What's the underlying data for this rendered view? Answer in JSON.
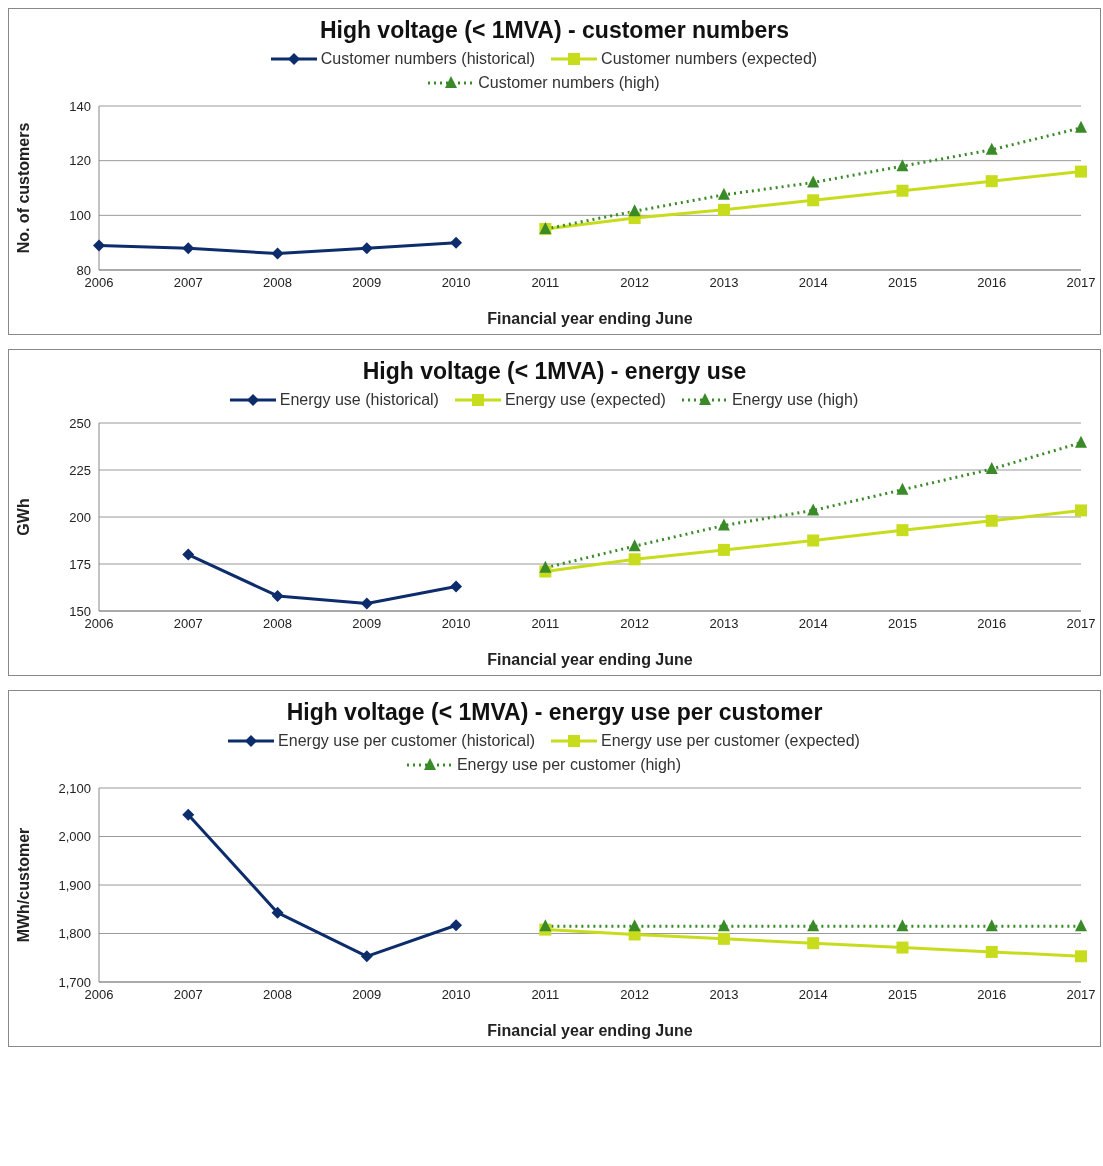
{
  "chart_data": [
    {
      "type": "line",
      "title": "High voltage (< 1MVA) - customer numbers",
      "xlabel": "Financial year ending June",
      "ylabel": "No. of customers",
      "categories": [
        "2006",
        "2007",
        "2008",
        "2009",
        "2010",
        "2011",
        "2012",
        "2013",
        "2014",
        "2015",
        "2016",
        "2017"
      ],
      "ylim": [
        80,
        140
      ],
      "yticks": [
        80,
        100,
        120,
        140
      ],
      "grid": "y",
      "legend": "top",
      "series": [
        {
          "name": "Customer numbers (historical)",
          "color": "#0d2c6c",
          "marker": "diamond",
          "line_style": "solid",
          "values": [
            89,
            88,
            86,
            88,
            90,
            null,
            null,
            null,
            null,
            null,
            null,
            null
          ]
        },
        {
          "name": "Customer numbers (expected)",
          "color": "#c8dc1e",
          "marker": "square",
          "line_style": "solid",
          "values": [
            null,
            null,
            null,
            null,
            null,
            95,
            99,
            102,
            105.5,
            109,
            112.5,
            116
          ]
        },
        {
          "name": "Customer numbers (high)",
          "color": "#3a8a2a",
          "marker": "triangle",
          "line_style": "dotted",
          "values": [
            null,
            null,
            null,
            null,
            null,
            95,
            101.5,
            107.5,
            112,
            118,
            124,
            132
          ]
        }
      ]
    },
    {
      "type": "line",
      "title": "High voltage (< 1MVA) - energy use",
      "xlabel": "Financial year ending June",
      "ylabel": "GWh",
      "categories": [
        "2006",
        "2007",
        "2008",
        "2009",
        "2010",
        "2011",
        "2012",
        "2013",
        "2014",
        "2015",
        "2016",
        "2017"
      ],
      "ylim": [
        150,
        250
      ],
      "yticks": [
        150,
        175,
        200,
        225,
        250
      ],
      "grid": "y",
      "legend": "top",
      "series": [
        {
          "name": "Energy use (historical)",
          "color": "#0d2c6c",
          "marker": "diamond",
          "line_style": "solid",
          "values": [
            null,
            180,
            158,
            154,
            163,
            null,
            null,
            null,
            null,
            null,
            null,
            null
          ]
        },
        {
          "name": "Energy use (expected)",
          "color": "#c8dc1e",
          "marker": "square",
          "line_style": "solid",
          "values": [
            null,
            null,
            null,
            null,
            null,
            171,
            177.5,
            182.5,
            187.5,
            193,
            198,
            203.5
          ]
        },
        {
          "name": "Energy use (high)",
          "color": "#3a8a2a",
          "marker": "triangle",
          "line_style": "dotted",
          "values": [
            null,
            null,
            null,
            null,
            null,
            173,
            184.5,
            195.5,
            203.5,
            214.5,
            225.5,
            239.5
          ]
        }
      ]
    },
    {
      "type": "line",
      "title": "High voltage (< 1MVA) - energy use per customer",
      "xlabel": "Financial year ending June",
      "ylabel": "MWh/customer",
      "categories": [
        "2006",
        "2007",
        "2008",
        "2009",
        "2010",
        "2011",
        "2012",
        "2013",
        "2014",
        "2015",
        "2016",
        "2017"
      ],
      "ylim": [
        1700,
        2100
      ],
      "yticks": [
        {
          "value": 1700,
          "label": "1,700"
        },
        {
          "value": 1800,
          "label": "1,800"
        },
        {
          "value": 1900,
          "label": "1,900"
        },
        {
          "value": 2000,
          "label": "2,000"
        },
        {
          "value": 2100,
          "label": "2,100"
        }
      ],
      "grid": "y",
      "legend": "top",
      "series": [
        {
          "name": "Energy use per customer (historical)",
          "color": "#0d2c6c",
          "marker": "diamond",
          "line_style": "solid",
          "values": [
            null,
            2045,
            1843,
            1753,
            1817,
            null,
            null,
            null,
            null,
            null,
            null,
            null
          ]
        },
        {
          "name": "Energy use per customer (expected)",
          "color": "#c8dc1e",
          "marker": "square",
          "line_style": "solid",
          "values": [
            null,
            null,
            null,
            null,
            null,
            1808,
            1798,
            1789,
            1780,
            1771,
            1762,
            1753
          ]
        },
        {
          "name": "Energy use per customer (high)",
          "color": "#3a8a2a",
          "marker": "triangle",
          "line_style": "dotted",
          "values": [
            null,
            null,
            null,
            null,
            null,
            1815,
            1815,
            1815,
            1815,
            1815,
            1815,
            1815
          ]
        }
      ]
    }
  ]
}
